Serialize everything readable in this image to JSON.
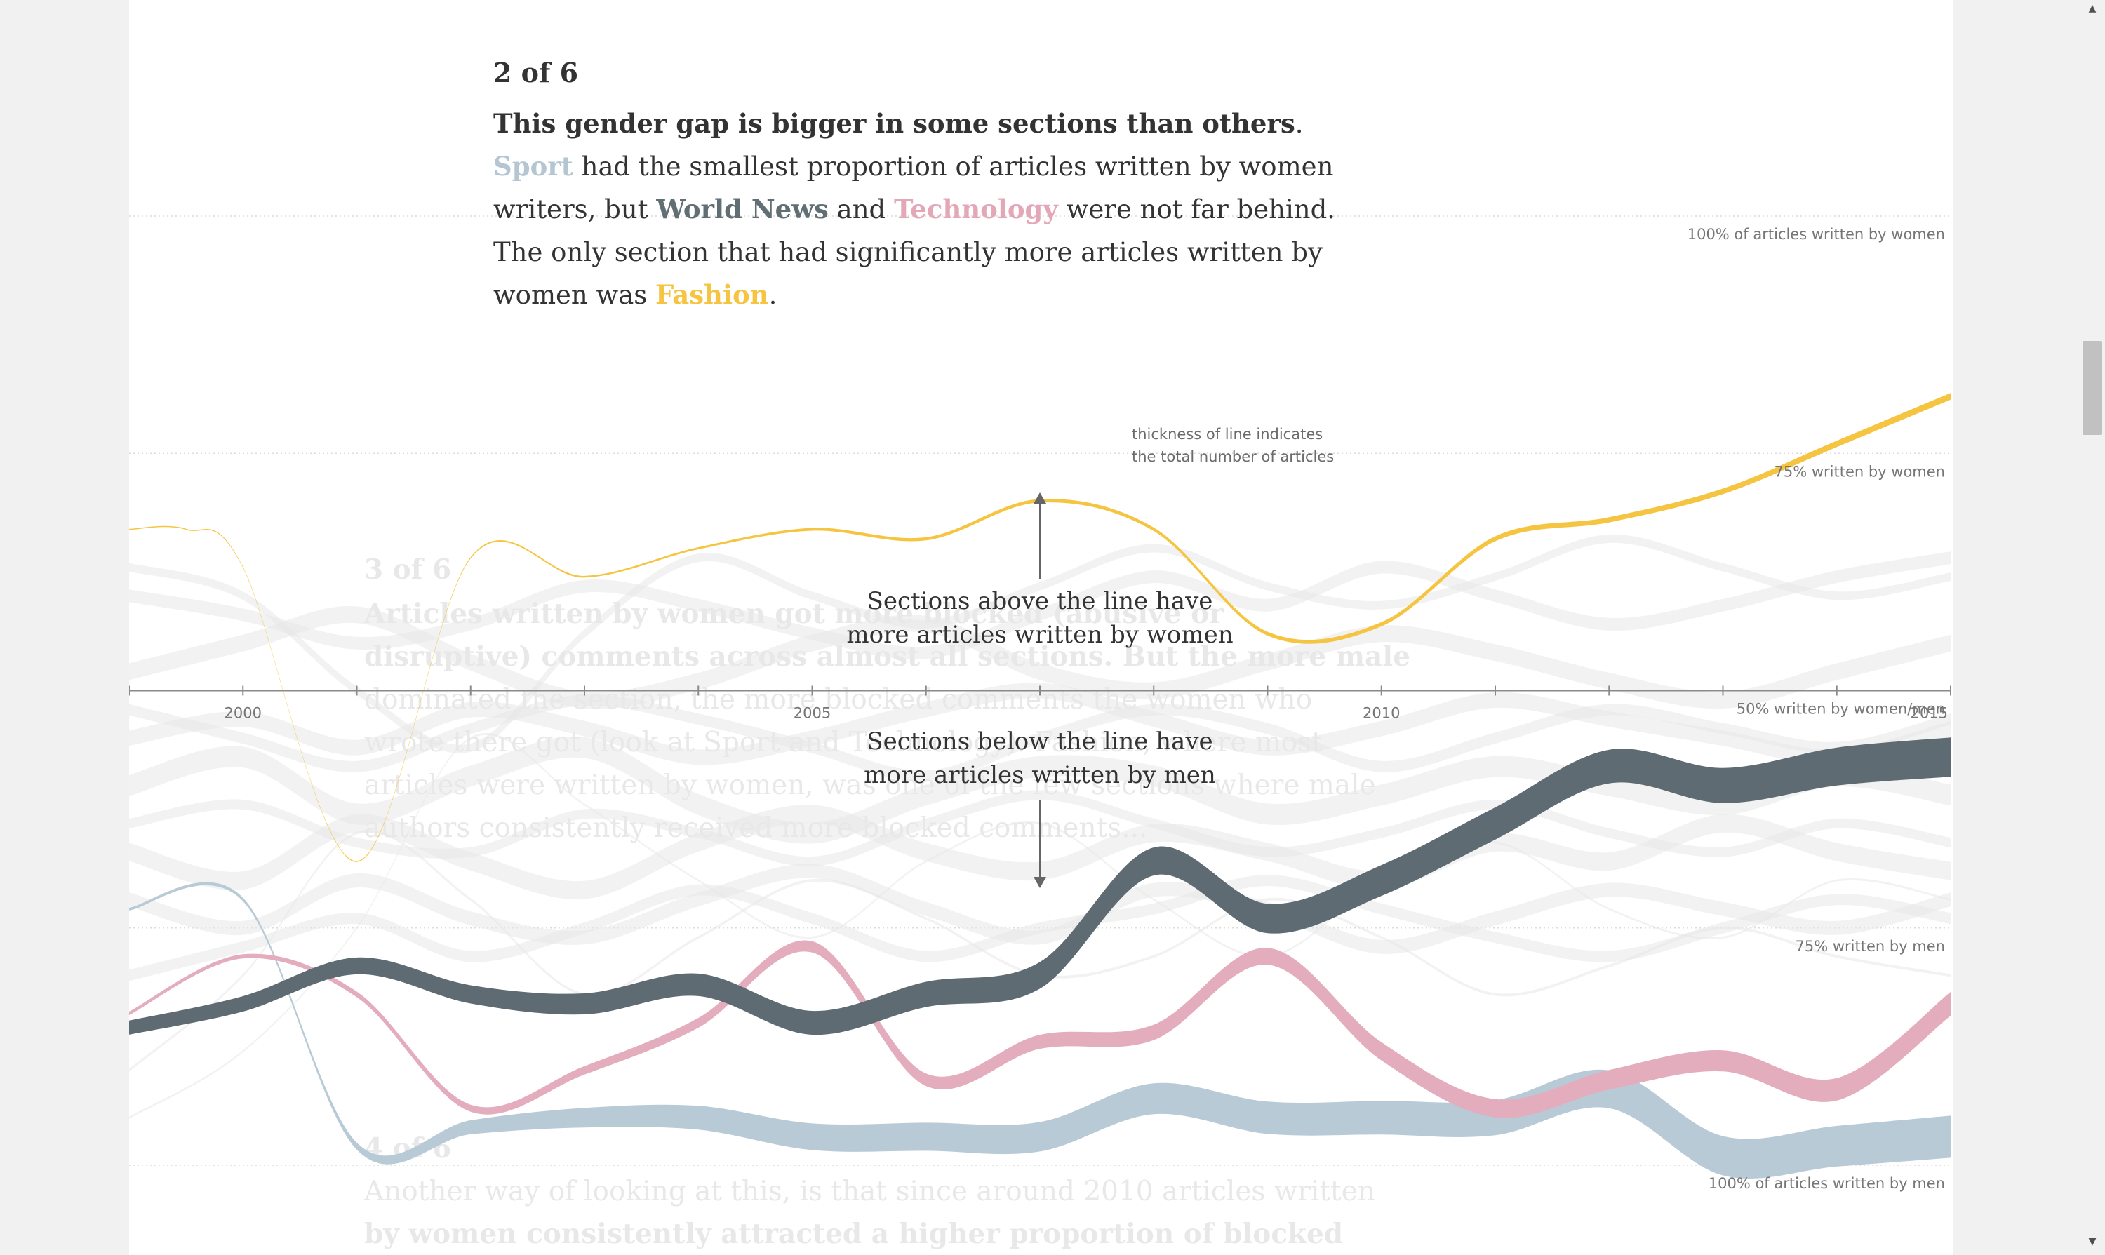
{
  "step": {
    "number": "2 of 6",
    "lead": "This gender gap is bigger in some sections than others",
    "part1": ". ",
    "sport": "Sport",
    "part2": " had the smallest proportion of articles written by women writers, but ",
    "world": "World News",
    "part3": " and ",
    "tech": "Technology",
    "part4": " were not far behind. The only section that had significantly more articles written by women was ",
    "fashion": "Fashion",
    "part5": "."
  },
  "ghost_text": {
    "s3_num": "3 of 6",
    "s3_l1": "Articles written by women got more blocked (abusive or",
    "s3_l2": "disruptive) comments across almost all sections. But the more male",
    "s3_l3": "dominated the section, the more blocked comments the women who",
    "s3_l4": "wrote there got (look at Sport and Technology). Fashion, where most",
    "s3_l5": "articles were written by women, was one of the few sections where male",
    "s3_l6": "authors consistently received more blocked comments...",
    "s4_num": "4 of 6",
    "s4_l1": "Another way of looking at this, is that since around 2010 articles written",
    "s4_l2": "by women consistently attracted a higher proportion of blocked"
  },
  "labels": {
    "note_line1": "thickness of line indicates",
    "note_line2": "the total number of articles",
    "above_line1": "Sections above the line have",
    "above_line2": "more articles written by women",
    "below_line1": "Sections below the line have",
    "below_line2": "more articles written by men"
  },
  "chart_data": {
    "type": "line",
    "x_domain": [
      1999,
      2015
    ],
    "y_domain": [
      0,
      100
    ],
    "y_unit": "% of articles written by women",
    "x_ticks": [
      1999,
      2000,
      2001,
      2002,
      2003,
      2004,
      2005,
      2006,
      2007,
      2008,
      2009,
      2010,
      2011,
      2012,
      2013,
      2014,
      2015
    ],
    "x_tick_labels": [
      {
        "x": 2000,
        "label": "2000"
      },
      {
        "x": 2005,
        "label": "2005"
      },
      {
        "x": 2010,
        "label": "2010"
      },
      {
        "x": 2015,
        "label": "2015"
      }
    ],
    "reference_lines": [
      {
        "value": 100,
        "label": "100% of articles written by women"
      },
      {
        "value": 75,
        "label": "75% written by women"
      },
      {
        "value": 50,
        "label": "50% written by women/men"
      },
      {
        "value": 25,
        "label": "75% written by men"
      },
      {
        "value": 0,
        "label": "100% of articles written by men"
      }
    ],
    "highlighted_series": [
      {
        "name": "Fashion",
        "color": "#f5c542",
        "x": [
          1999,
          1999.5,
          2000,
          2001,
          2002,
          2003,
          2004,
          2005,
          2006,
          2007,
          2008,
          2009,
          2010,
          2011,
          2012,
          2013,
          2014,
          2015
        ],
        "y": [
          67,
          67,
          63,
          32,
          64,
          62,
          65,
          67,
          66,
          70,
          67,
          56,
          57,
          66,
          68,
          71,
          76,
          81
        ],
        "thickness": [
          1.5,
          1.5,
          1.5,
          1.5,
          2,
          2.5,
          3,
          4,
          4.5,
          5,
          5,
          5.5,
          6,
          7,
          7.5,
          8,
          9,
          9.5
        ]
      },
      {
        "name": "World News",
        "color": "#5f6b72",
        "x": [
          1999,
          2000,
          2001,
          2002,
          2003,
          2004,
          2005,
          2006,
          2007,
          2008,
          2009,
          2010,
          2011,
          2012,
          2013,
          2014,
          2015
        ],
        "y": [
          14.5,
          17,
          21,
          18,
          17,
          19,
          15,
          18,
          20,
          32,
          26,
          30,
          36,
          42,
          40,
          42,
          43
        ],
        "thickness": [
          20,
          22,
          24,
          26,
          30,
          32,
          34,
          36,
          38,
          40,
          42,
          44,
          46,
          48,
          50,
          54,
          56
        ]
      },
      {
        "name": "Technology",
        "color": "#e3adbe",
        "x": [
          1999,
          2000,
          2001,
          2002,
          2003,
          2004,
          2005,
          2006,
          2007,
          2008,
          2009,
          2010,
          2011,
          2012,
          2013,
          2014,
          2015
        ],
        "y": [
          16,
          22,
          18,
          6,
          10,
          15,
          23,
          9,
          13,
          14,
          22,
          12,
          6,
          9,
          11,
          8,
          17
        ],
        "thickness": [
          5,
          6,
          8,
          10,
          12,
          14,
          16,
          18,
          20,
          22,
          24,
          26,
          26,
          28,
          30,
          32,
          34
        ]
      },
      {
        "name": "Sport",
        "color": "#b9cad7",
        "x": [
          1999,
          2000,
          2001,
          2002,
          2003,
          2004,
          2005,
          2006,
          2007,
          2008,
          2009,
          2010,
          2011,
          2012,
          2013,
          2014,
          2015
        ],
        "y": [
          27,
          28,
          2,
          4,
          5,
          5,
          3,
          3,
          3,
          7,
          5,
          5,
          5,
          8,
          1,
          2,
          3
        ],
        "thickness": [
          4,
          5,
          10,
          20,
          28,
          34,
          38,
          40,
          42,
          44,
          46,
          48,
          50,
          54,
          56,
          58,
          60
        ]
      }
    ],
    "background_series": [
      {
        "y": [
          40,
          43,
          37,
          41,
          44,
          38,
          35,
          39,
          42,
          41,
          37,
          39,
          42,
          40,
          38,
          41,
          39
        ],
        "w": 30
      },
      {
        "y": [
          33,
          30,
          36,
          32,
          29,
          34,
          37,
          33,
          31,
          35,
          33,
          30,
          34,
          32,
          36,
          33,
          31
        ],
        "w": 26
      },
      {
        "y": [
          60,
          58,
          55,
          57,
          61,
          59,
          56,
          54,
          58,
          62,
          59,
          63,
          60,
          57,
          59,
          62,
          64
        ],
        "w": 18
      },
      {
        "y": [
          52,
          55,
          58,
          53,
          49,
          51,
          55,
          57,
          52,
          50,
          53,
          56,
          54,
          51,
          49,
          52,
          55
        ],
        "w": 24
      },
      {
        "y": [
          45,
          47,
          44,
          48,
          46,
          43,
          45,
          48,
          50,
          47,
          44,
          46,
          49,
          47,
          45,
          43,
          46
        ],
        "w": 22
      },
      {
        "y": [
          28,
          25,
          30,
          26,
          24,
          28,
          31,
          27,
          24,
          29,
          27,
          23,
          26,
          29,
          27,
          25,
          28
        ],
        "w": 20
      },
      {
        "y": [
          20,
          23,
          26,
          22,
          25,
          29,
          26,
          22,
          25,
          27,
          30,
          27,
          24,
          22,
          25,
          28,
          26
        ],
        "w": 16
      },
      {
        "y": [
          63,
          60,
          50,
          44,
          56,
          64,
          60,
          57,
          61,
          65,
          61,
          59,
          62,
          66,
          63,
          60,
          62
        ],
        "w": 12
      },
      {
        "y": [
          36,
          38,
          34,
          33,
          37,
          35,
          32,
          36,
          39,
          36,
          33,
          35,
          38,
          35,
          33,
          36,
          34
        ],
        "w": 14
      },
      {
        "y": [
          48,
          45,
          42,
          46,
          49,
          47,
          44,
          41,
          45,
          48,
          46,
          42,
          45,
          48,
          46,
          44,
          47
        ],
        "w": 16
      },
      {
        "y": [
          10,
          20,
          35,
          28,
          18,
          24,
          30,
          26,
          20,
          22,
          28,
          24,
          18,
          21,
          25,
          22,
          20
        ],
        "w": 4
      },
      {
        "y": [
          5,
          12,
          25,
          45,
          38,
          30,
          24,
          32,
          36,
          28,
          22,
          30,
          34,
          27,
          24,
          30,
          28
        ],
        "w": 3
      }
    ]
  }
}
